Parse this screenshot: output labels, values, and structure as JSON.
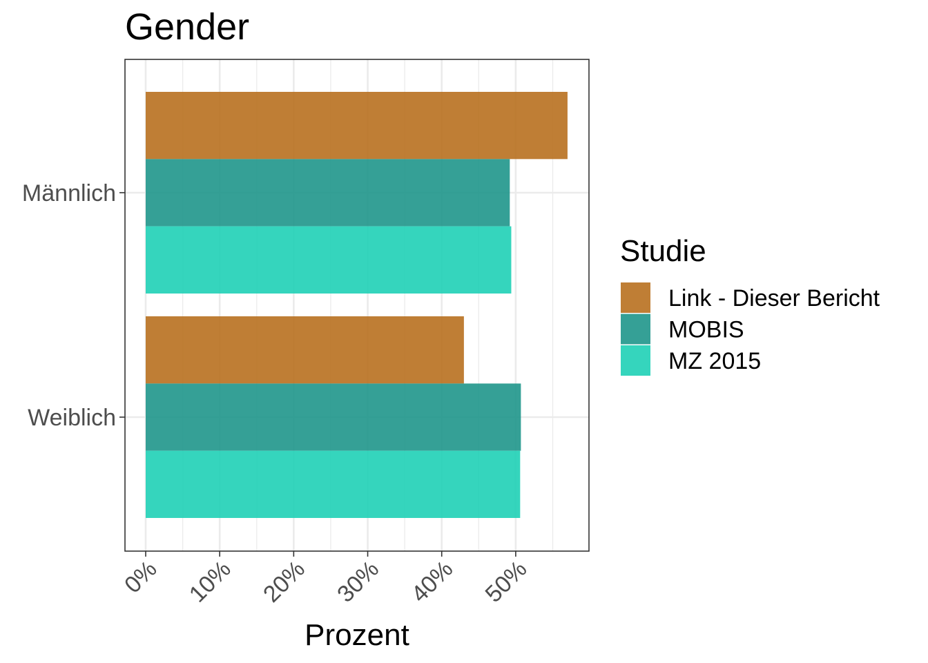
{
  "chart_data": {
    "type": "bar",
    "orientation": "horizontal",
    "title": "Gender",
    "xlabel": "Prozent",
    "ylabel": "",
    "categories": [
      "Männlich",
      "Weiblich"
    ],
    "series": [
      {
        "name": "Link - Dieser Bericht",
        "color": "#b8701f",
        "values": [
          57,
          43
        ]
      },
      {
        "name": "MOBIS",
        "color": "#1f968b",
        "values": [
          49.2,
          50.7
        ]
      },
      {
        "name": "MZ 2015",
        "color": "#1fd0b6",
        "values": [
          49.4,
          50.6
        ]
      }
    ],
    "xlim": [
      -2.8,
      59.9
    ],
    "x_ticks": [
      0,
      10,
      20,
      30,
      40,
      50
    ],
    "x_tick_labels": [
      "0%",
      "10%",
      "20%",
      "30%",
      "40%",
      "50%"
    ],
    "grid": true,
    "legend": {
      "title": "Studie",
      "position": "right"
    }
  }
}
